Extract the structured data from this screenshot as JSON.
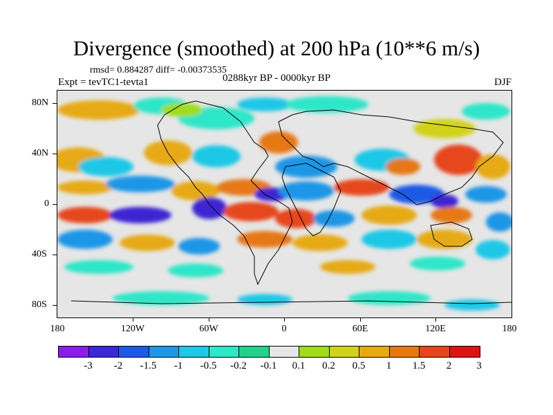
{
  "header": {
    "title": "Divergence (smoothed) at 200 hPa (10**6 m/s)",
    "stats": "rmsd= 0.884287 diff= -0.00373535",
    "experiment": "Expt = tevTC1-tevta1",
    "period": "0288kyr BP - 0000kyr BP",
    "season": "DJF"
  },
  "map": {
    "lat_labels": [
      "80N",
      "40N",
      "0",
      "40S",
      "80S"
    ],
    "lon_labels": [
      "180",
      "120W",
      "60W",
      "0",
      "60E",
      "120E",
      "180"
    ],
    "background_color": "#e6e6e6"
  },
  "colorbar": {
    "labels": [
      "-3",
      "-2",
      "-1.5",
      "-1",
      "-0.5",
      "-0.2",
      "-0.1",
      "0.1",
      "0.2",
      "0.5",
      "1",
      "1.5",
      "2",
      "3"
    ],
    "colors": [
      "#8a1ee6",
      "#3c28d2",
      "#1e5ae6",
      "#1e96e6",
      "#1ec8e6",
      "#2ee6c8",
      "#22d28a",
      "#e6e6e6",
      "#a0dc1e",
      "#d2d21e",
      "#e6aa14",
      "#e67814",
      "#e6461e",
      "#dc1414"
    ]
  }
}
